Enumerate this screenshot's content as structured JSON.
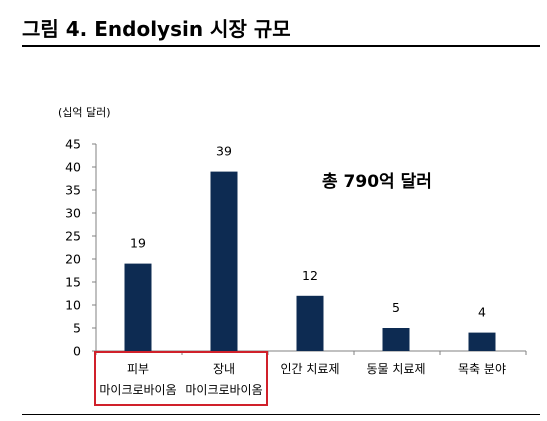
{
  "figure": {
    "title": "그림 4. Endolysin 시장 규모"
  },
  "chart_data": {
    "type": "bar",
    "categories": [
      [
        "피부",
        "마이크로바이옴"
      ],
      [
        "장내",
        "마이크로바이옴"
      ],
      [
        "인간 치료제"
      ],
      [
        "동물 치료제"
      ],
      [
        "목축 분야"
      ]
    ],
    "values": [
      19,
      39,
      12,
      5,
      4
    ],
    "data_labels": [
      "19",
      "39",
      "12",
      "5",
      "4"
    ],
    "ylabel": "(십억 달러)",
    "ylim": [
      0,
      45
    ],
    "yticks": [
      0,
      5,
      10,
      15,
      20,
      25,
      30,
      35,
      40,
      45
    ],
    "bar_color": "#0d2b52",
    "annotation": "총 790억 달러",
    "highlight_color": "#d0202a",
    "grid": false
  }
}
